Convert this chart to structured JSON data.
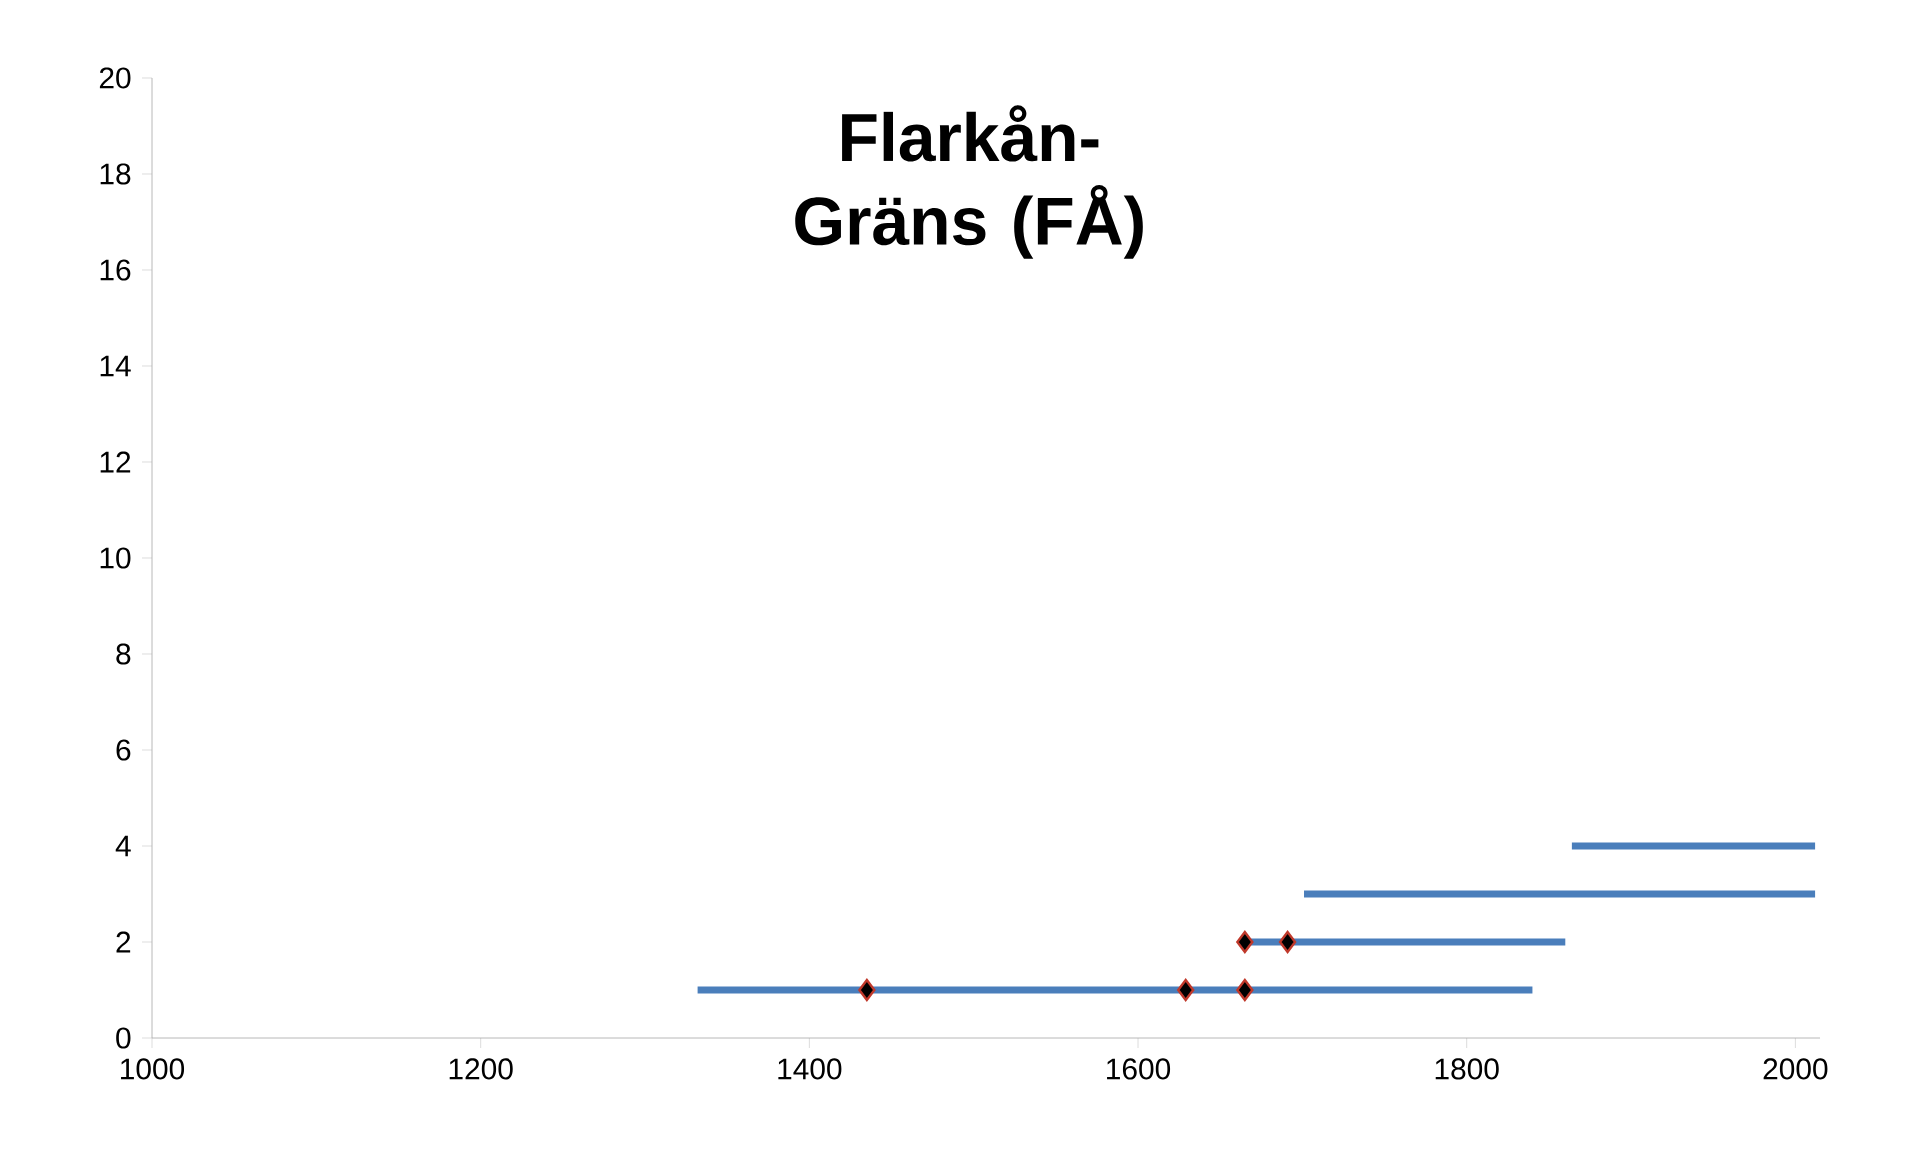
{
  "chart_data": {
    "type": "line",
    "title": "Flarkån-Gräns (FÅ)",
    "xlim": [
      1000,
      2015
    ],
    "xticks": [
      1000,
      1200,
      1400,
      1600,
      1800,
      2000
    ],
    "ylim": [
      0,
      20
    ],
    "yticks": [
      0,
      2,
      4,
      6,
      8,
      10,
      12,
      14,
      16,
      18,
      20
    ],
    "series": [
      {
        "color": "#4a7ebb",
        "x": [
          1332,
          1840
        ],
        "values": [
          1,
          1
        ]
      },
      {
        "color": "#4a7ebb",
        "x": [
          1662,
          1860
        ],
        "values": [
          2,
          2
        ]
      },
      {
        "color": "#4a7ebb",
        "x": [
          1701,
          2012
        ],
        "values": [
          3,
          3
        ]
      },
      {
        "color": "#4a7ebb",
        "x": [
          1864,
          2012
        ],
        "values": [
          4,
          4
        ]
      },
      {
        "type": "scatter",
        "marker": "diamond",
        "color": "#c0392b",
        "x": [
          1435,
          1629,
          1665,
          1665,
          1691
        ],
        "values": [
          1,
          1,
          1,
          2,
          2
        ]
      }
    ]
  }
}
